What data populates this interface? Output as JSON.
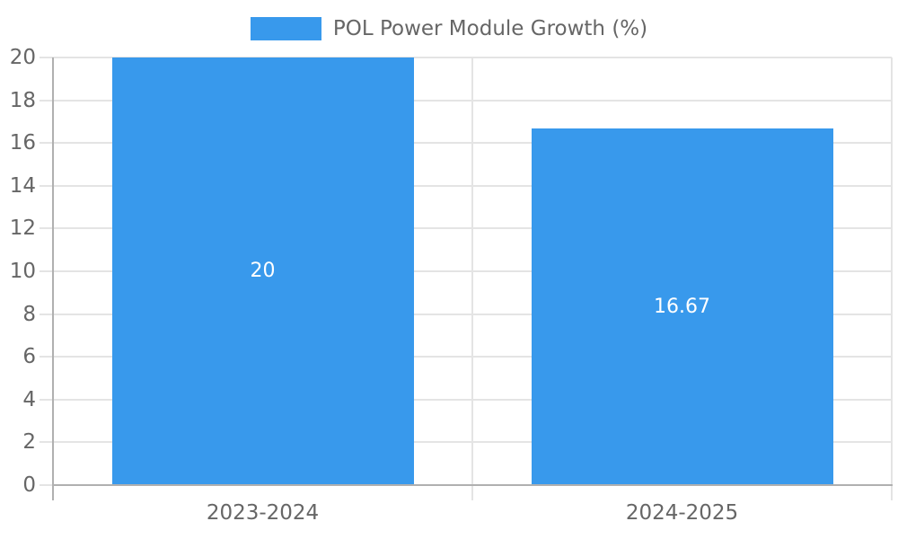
{
  "chart_data": {
    "type": "bar",
    "categories": [
      "2023-2024",
      "2024-2025"
    ],
    "series": [
      {
        "name": "POL Power Module Growth (%)",
        "values": [
          20,
          16.67
        ],
        "value_labels": [
          "20",
          "16.67"
        ],
        "color": "#3899ec"
      }
    ],
    "title": "",
    "xlabel": "",
    "ylabel": "",
    "ylim": [
      0,
      20
    ],
    "yticks": [
      0,
      2,
      4,
      6,
      8,
      10,
      12,
      14,
      16,
      18,
      20
    ],
    "grid": true,
    "legend_position": "top-center",
    "value_labels_inside_bars": true
  },
  "colors": {
    "bar": "#3899ec",
    "grid": "#e4e4e4",
    "axis": "#b0b0b0",
    "tick_label": "#666666",
    "bar_value_label": "#ffffff",
    "background": "#ffffff"
  }
}
